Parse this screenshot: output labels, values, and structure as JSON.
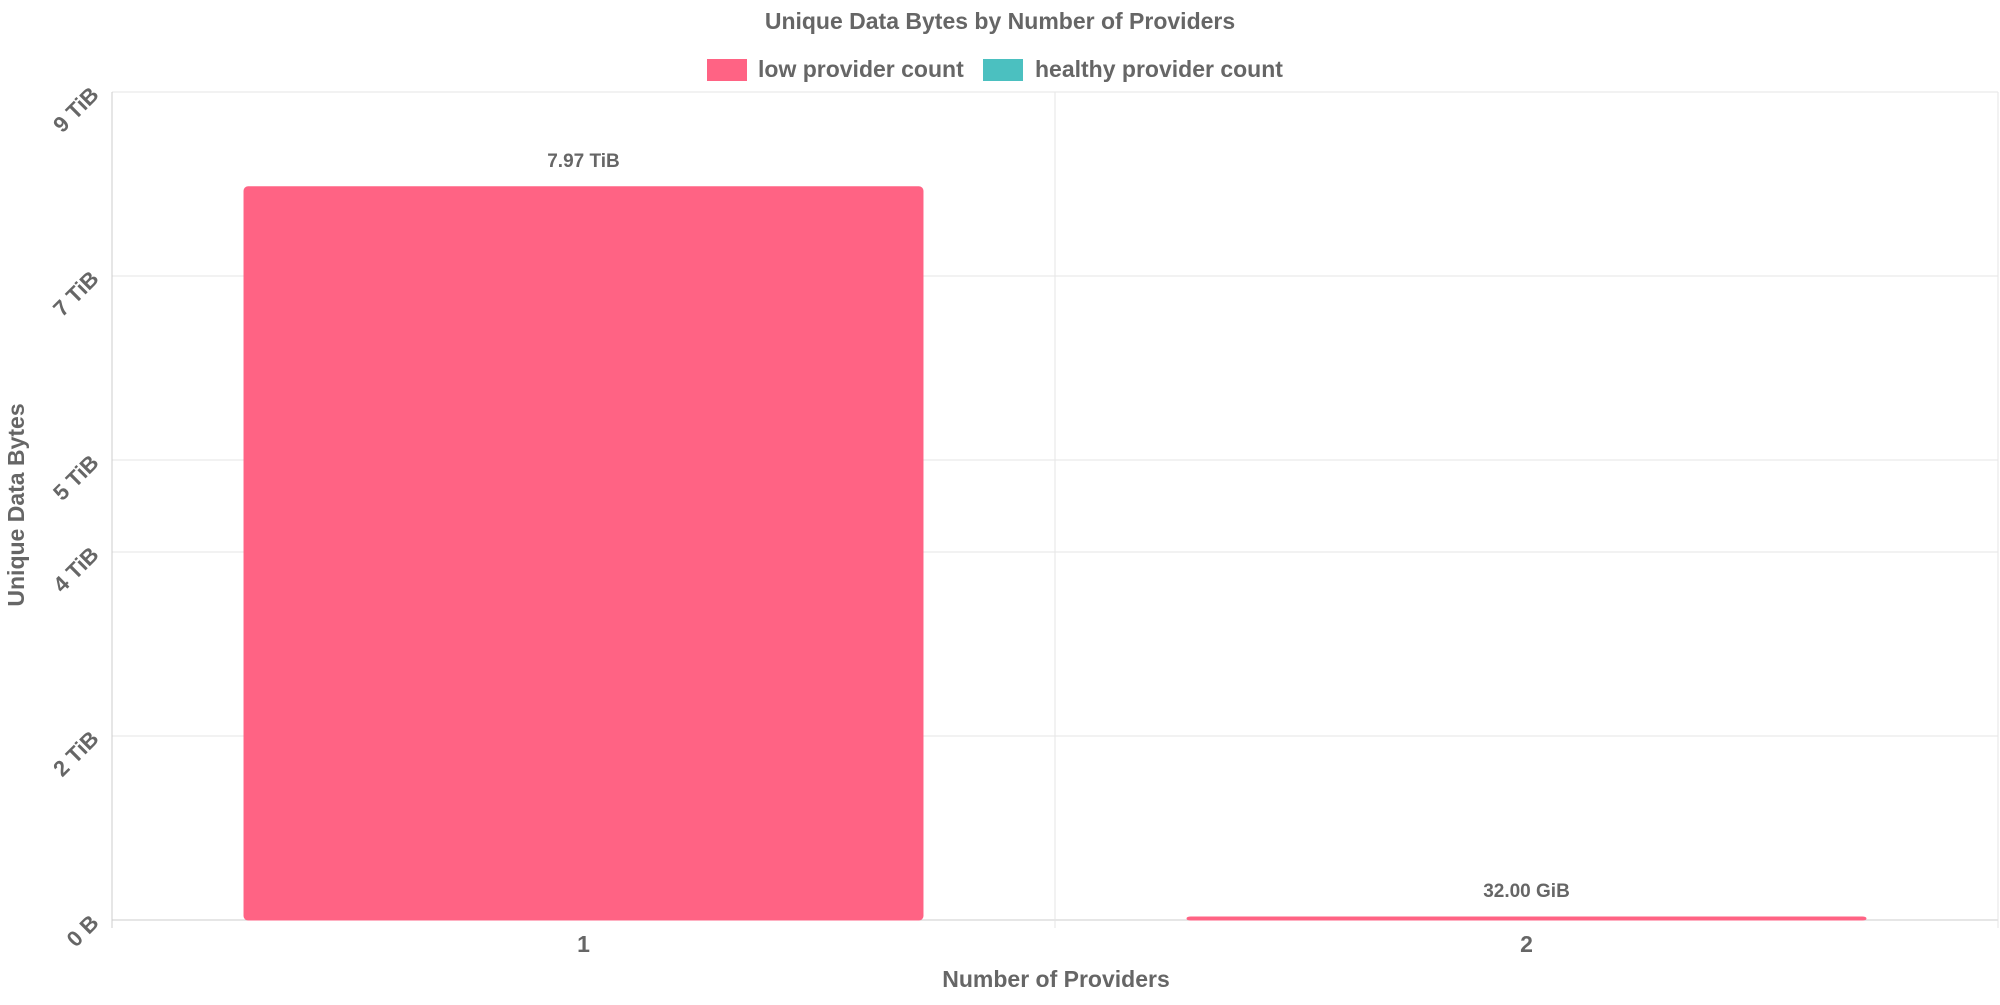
{
  "chart_data": {
    "type": "bar",
    "title": "Unique Data Bytes by Number of Providers",
    "xlabel": "Number of Providers",
    "ylabel": "Unique Data Bytes",
    "categories": [
      "1",
      "2"
    ],
    "series": [
      {
        "name": "low provider count",
        "color": "#ff6384",
        "values_tib": [
          7.97,
          0.03125
        ],
        "data_labels": [
          "7.97 TiB",
          "32.00 GiB"
        ]
      },
      {
        "name": "healthy provider count",
        "color": "#4bc0c0",
        "values_tib": [
          0,
          0
        ],
        "data_labels": []
      }
    ],
    "y_unit": "TiB",
    "y_ticks": [
      {
        "value": 0,
        "label": "0 B"
      },
      {
        "value": 2,
        "label": "2 TiB"
      },
      {
        "value": 4,
        "label": "4 TiB"
      },
      {
        "value": 5,
        "label": "5 TiB"
      },
      {
        "value": 7,
        "label": "7 TiB"
      },
      {
        "value": 9,
        "label": "9 TiB"
      }
    ],
    "ylim": [
      0,
      9
    ],
    "grid": true,
    "legend_position": "top"
  }
}
